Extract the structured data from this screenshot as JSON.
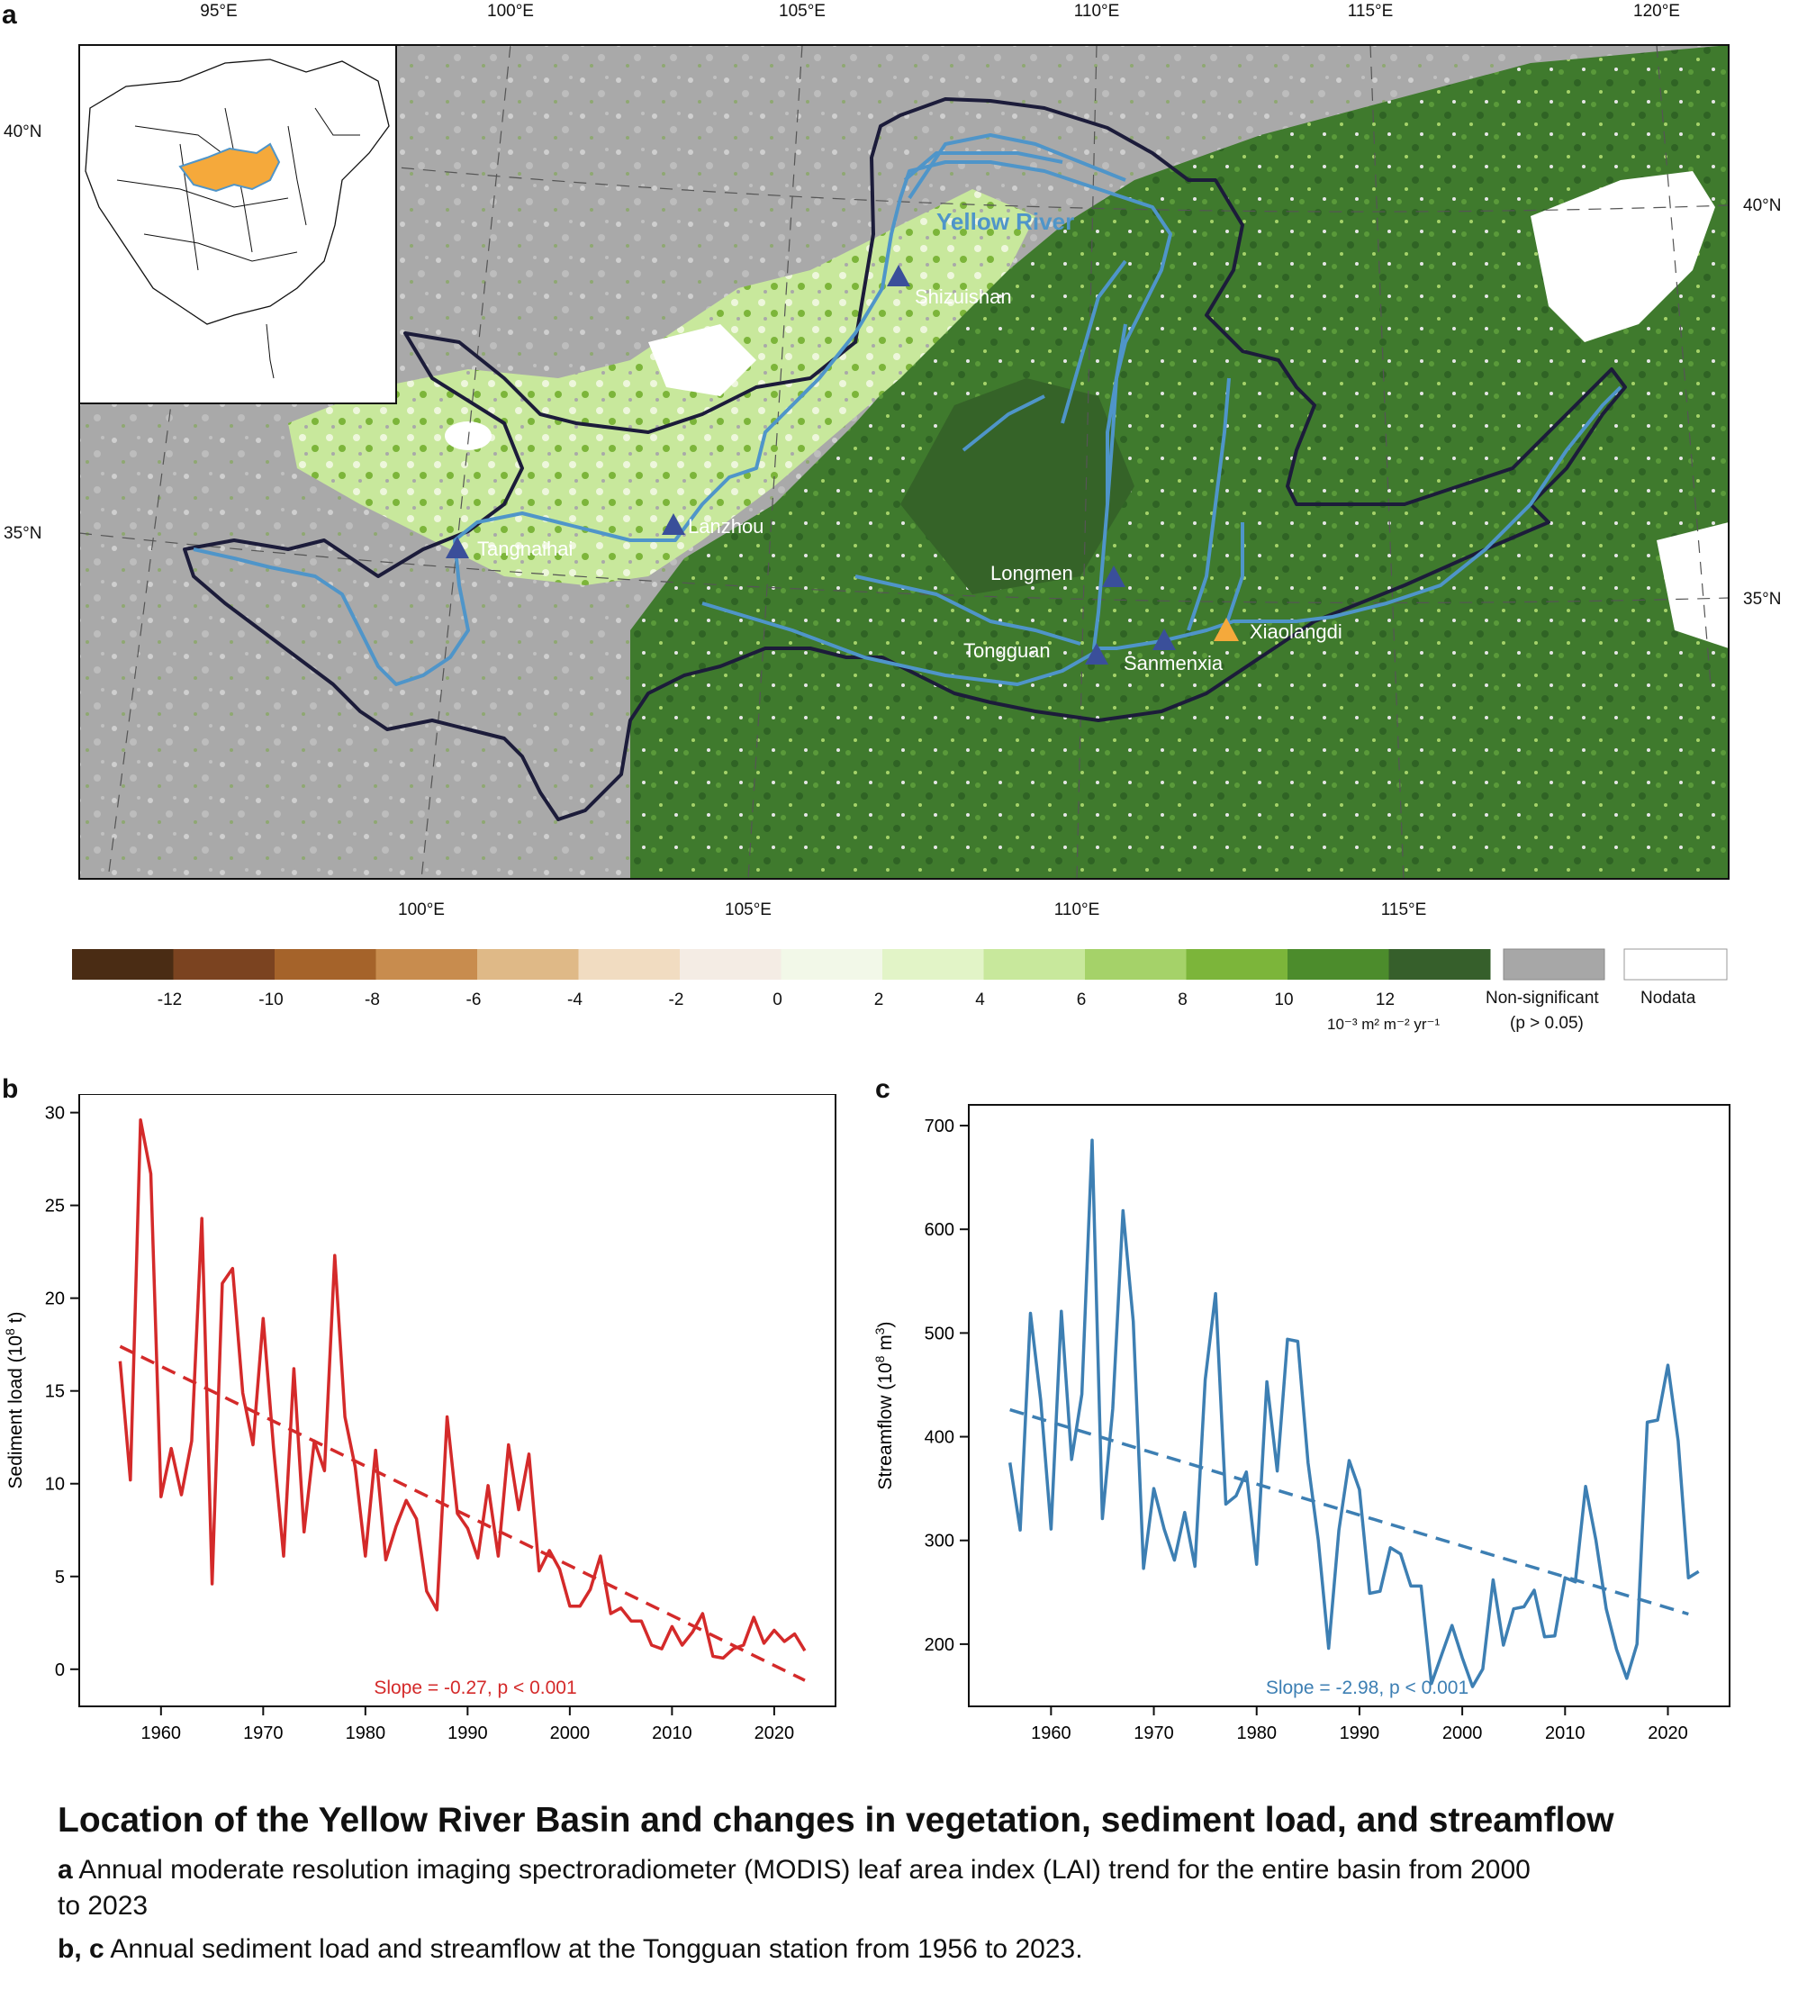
{
  "panels": {
    "a": "a",
    "b": "b",
    "c": "c"
  },
  "map": {
    "top_lon_labels": [
      "95°E",
      "100°E",
      "105°E",
      "110°E",
      "115°E",
      "120°E"
    ],
    "bottom_lon_labels": [
      "100°E",
      "105°E",
      "110°E",
      "115°E"
    ],
    "left_lat_labels": [
      "40°N",
      "35°N"
    ],
    "right_lat_labels": [
      "40°N",
      "35°N"
    ],
    "river_label": "Yellow River",
    "stations": [
      "Shizuishan",
      "Lanzhou",
      "Tangnaihai",
      "Longmen",
      "Tongguan",
      "Sanmenxia",
      "Xiaolangdi"
    ],
    "colors": {
      "river": "#4f95c9",
      "basin_outline": "#1c1c3a",
      "station_marker": "#3a4f9a",
      "reservoir_marker": "#f5a93b",
      "inset_basin": "#f5a93b",
      "nonsignificant": "#a7a7a7"
    }
  },
  "legend": {
    "colors": [
      "#4a2c14",
      "#7b4320",
      "#a5632a",
      "#c88c4e",
      "#dfb987",
      "#f1dcc1",
      "#f4ece4",
      "#f2f8e8",
      "#e2f4c7",
      "#c8e89c",
      "#a5d269",
      "#7cb53a",
      "#4c8c2c",
      "#365f2b"
    ],
    "tick_labels": [
      "-12",
      "-10",
      "-8",
      "-6",
      "-4",
      "-2",
      "0",
      "2",
      "4",
      "6",
      "8",
      "10",
      "12"
    ],
    "units": "10⁻³ m² m⁻² yr⁻¹",
    "nonsig_label": "Non-significant",
    "nonsig_sub": "(p > 0.05)",
    "nodata_label": "Nodata"
  },
  "chart_data": [
    {
      "type": "line",
      "panel": "b",
      "ylabel_main": "Sediment load (10",
      "ylabel_sup": "8",
      "ylabel_tail": " t)",
      "xlim": [
        1952,
        2026
      ],
      "ylim": [
        -2,
        31
      ],
      "x_ticks": [
        1960,
        1970,
        1980,
        1990,
        2000,
        2010,
        2020
      ],
      "y_ticks": [
        0,
        5,
        10,
        15,
        20,
        25,
        30
      ],
      "color": "#d42a2a",
      "annotation": "Slope = -0.27, p < 0.001",
      "trend": {
        "x": [
          1956,
          2023
        ],
        "y": [
          17.4,
          -0.6
        ]
      },
      "x": [
        1956,
        1957,
        1958,
        1959,
        1960,
        1961,
        1962,
        1963,
        1964,
        1965,
        1966,
        1967,
        1968,
        1969,
        1970,
        1971,
        1972,
        1973,
        1974,
        1975,
        1976,
        1977,
        1978,
        1979,
        1980,
        1981,
        1982,
        1983,
        1984,
        1985,
        1986,
        1987,
        1988,
        1989,
        1990,
        1991,
        1992,
        1993,
        1994,
        1995,
        1996,
        1997,
        1998,
        1999,
        2000,
        2001,
        2002,
        2003,
        2004,
        2005,
        2006,
        2007,
        2008,
        2009,
        2010,
        2011,
        2012,
        2013,
        2014,
        2015,
        2016,
        2017,
        2018,
        2019,
        2020,
        2021,
        2022,
        2023
      ],
      "y": [
        16.6,
        10.2,
        29.6,
        26.7,
        9.3,
        11.9,
        9.4,
        12.3,
        24.3,
        4.6,
        20.8,
        21.6,
        14.9,
        12.1,
        18.9,
        12.0,
        6.1,
        16.2,
        7.4,
        12.3,
        10.7,
        22.3,
        13.6,
        10.9,
        6.1,
        11.8,
        5.9,
        7.7,
        9.1,
        8.1,
        4.2,
        3.2,
        13.6,
        8.4,
        7.6,
        6.0,
        9.9,
        6.1,
        12.1,
        8.6,
        11.6,
        5.3,
        6.4,
        5.4,
        3.4,
        3.4,
        4.3,
        6.1,
        3.0,
        3.3,
        2.6,
        2.6,
        1.3,
        1.1,
        2.3,
        1.3,
        2.0,
        3.0,
        0.7,
        0.6,
        1.1,
        1.3,
        2.8,
        1.4,
        2.1,
        1.5,
        1.9,
        1.0
      ]
    },
    {
      "type": "line",
      "panel": "c",
      "ylabel_main": "Streamflow (10",
      "ylabel_sup": "8",
      "ylabel_tail": " m",
      "ylabel_sup2": "3",
      "ylabel_close": ")",
      "xlim": [
        1952,
        2026
      ],
      "ylim": [
        140,
        720
      ],
      "x_ticks": [
        1960,
        1970,
        1980,
        1990,
        2000,
        2010,
        2020
      ],
      "y_ticks": [
        200,
        300,
        400,
        500,
        600,
        700
      ],
      "color": "#3d7fb3",
      "annotation": "Slope = -2.98, p < 0.001",
      "trend": {
        "x": [
          1956,
          2022
        ],
        "y": [
          426,
          229
        ]
      },
      "x": [
        1956,
        1957,
        1958,
        1959,
        1960,
        1961,
        1962,
        1963,
        1964,
        1965,
        1966,
        1967,
        1968,
        1969,
        1970,
        1971,
        1972,
        1973,
        1974,
        1975,
        1976,
        1977,
        1978,
        1979,
        1980,
        1981,
        1982,
        1983,
        1984,
        1985,
        1986,
        1987,
        1988,
        1989,
        1990,
        1991,
        1992,
        1993,
        1994,
        1995,
        1996,
        1997,
        1998,
        1999,
        2000,
        2001,
        2002,
        2003,
        2004,
        2005,
        2006,
        2007,
        2008,
        2009,
        2010,
        2011,
        2012,
        2013,
        2014,
        2015,
        2016,
        2017,
        2018,
        2019,
        2020,
        2021,
        2022,
        2023
      ],
      "y": [
        375,
        310,
        519,
        435,
        311,
        521,
        378,
        441,
        686,
        321,
        427,
        618,
        511,
        273,
        350,
        311,
        281,
        327,
        275,
        455,
        538,
        335,
        343,
        366,
        277,
        453,
        367,
        494,
        492,
        375,
        300,
        196,
        310,
        377,
        349,
        249,
        251,
        293,
        287,
        256,
        256,
        162,
        190,
        218,
        187,
        159,
        176,
        262,
        199,
        234,
        236,
        252,
        207,
        208,
        264,
        260,
        352,
        300,
        234,
        195,
        167,
        200,
        414,
        416,
        469,
        396,
        264,
        270
      ]
    }
  ],
  "caption": {
    "title": "Location of the Yellow River Basin and changes in vegetation, sediment load, and streamflow",
    "a_label": "a",
    "a_text": " Annual moderate resolution imaging spectroradiometer (MODIS) leaf area index (LAI) trend for the entire basin from 2000",
    "a_text2": "to 2023",
    "bc_label": "b, c",
    "bc_text": " Annual sediment load and streamflow at the Tongguan station from 1956 to 2023."
  }
}
